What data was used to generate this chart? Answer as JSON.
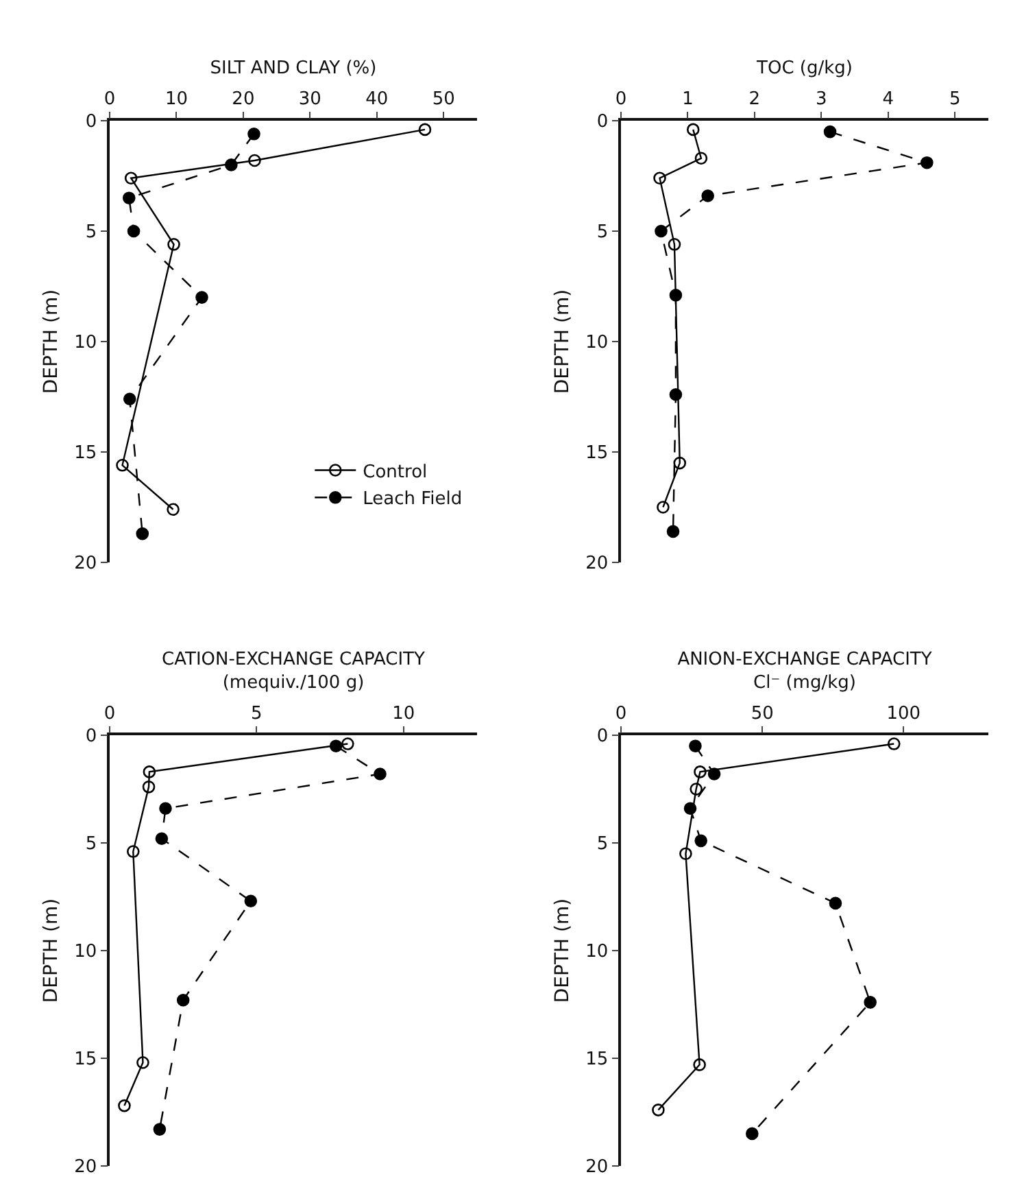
{
  "chart_data": [
    {
      "type": "line",
      "xlabel": "SILT AND CLAY (%)",
      "ylabel": "DEPTH (m)",
      "xlim": [
        0,
        55
      ],
      "xticks": [
        0,
        10,
        20,
        30,
        40,
        50
      ],
      "ylim": [
        20,
        0
      ],
      "yticks": [
        0,
        5,
        10,
        15,
        20
      ],
      "grid": false,
      "legend": "bottom right",
      "series": [
        {
          "name": "Control",
          "color": "#000000",
          "marker": "circle-open",
          "line_style": "solid",
          "x": [
            47.2,
            21.7,
            3.2,
            9.6,
            1.9,
            9.5
          ],
          "values": [
            0.4,
            1.8,
            2.6,
            5.6,
            15.6,
            17.6
          ]
        },
        {
          "name": "Leach Field",
          "color": "#000000",
          "marker": "circle",
          "line_style": "dashed",
          "x": [
            21.6,
            18.2,
            2.9,
            3.6,
            13.8,
            3.0,
            4.9
          ],
          "values": [
            0.6,
            2.0,
            3.5,
            5.0,
            8.0,
            12.6,
            18.7
          ]
        }
      ]
    },
    {
      "type": "line",
      "xlabel": "TOC (g/kg)",
      "ylabel": "DEPTH (m)",
      "xlim": [
        0,
        5.5
      ],
      "xticks": [
        0,
        1,
        2,
        3,
        4,
        5
      ],
      "ylim": [
        20,
        0
      ],
      "yticks": [
        0,
        5,
        10,
        15,
        20
      ],
      "grid": false,
      "series": [
        {
          "color": "#000000",
          "marker": "circle-open",
          "line_style": "solid",
          "x": [
            1.08,
            1.2,
            0.58,
            0.8,
            0.88,
            0.63
          ],
          "values": [
            0.4,
            1.7,
            2.6,
            5.6,
            15.5,
            17.5
          ]
        },
        {
          "color": "#000000",
          "marker": "circle",
          "line_style": "dashed",
          "x": [
            3.13,
            4.58,
            1.3,
            0.6,
            0.82,
            0.82,
            0.78
          ],
          "values": [
            0.5,
            1.9,
            3.4,
            5.0,
            7.9,
            12.4,
            18.6
          ]
        }
      ]
    },
    {
      "type": "line",
      "xlabel": "CATION-EXCHANGE CAPACITY\n(mequiv./100 g)",
      "ylabel": "DEPTH (m)",
      "xlim": [
        0,
        12.5
      ],
      "xticks": [
        0,
        5,
        10
      ],
      "ylim": [
        20,
        0
      ],
      "yticks": [
        0,
        5,
        10,
        15,
        20
      ],
      "grid": false,
      "series": [
        {
          "color": "#000000",
          "marker": "circle-open",
          "line_style": "solid",
          "x": [
            8.1,
            1.35,
            1.33,
            0.8,
            1.13,
            0.5
          ],
          "values": [
            0.4,
            1.7,
            2.4,
            5.4,
            15.2,
            17.2
          ]
        },
        {
          "color": "#000000",
          "marker": "circle",
          "line_style": "dashed",
          "x": [
            7.7,
            9.2,
            1.9,
            1.77,
            4.8,
            2.5,
            1.7
          ],
          "values": [
            0.5,
            1.8,
            3.4,
            4.8,
            7.7,
            12.3,
            18.3
          ]
        }
      ]
    },
    {
      "type": "line",
      "xlabel": "ANION-EXCHANGE CAPACITY\nCl⁻ (mg/kg)",
      "ylabel": "DEPTH (m)",
      "xlim": [
        0,
        130
      ],
      "xticks": [
        0,
        50,
        100
      ],
      "ylim": [
        20,
        0
      ],
      "yticks": [
        0,
        5,
        10,
        15,
        20
      ],
      "grid": false,
      "series": [
        {
          "color": "#000000",
          "marker": "circle-open",
          "line_style": "solid",
          "x": [
            96.6,
            28.0,
            26.6,
            22.9,
            27.8,
            13.2
          ],
          "values": [
            0.4,
            1.7,
            2.5,
            5.5,
            15.3,
            17.4
          ]
        },
        {
          "color": "#000000",
          "marker": "circle",
          "line_style": "dashed",
          "x": [
            26.3,
            33.0,
            24.5,
            28.3,
            75.9,
            88.2,
            46.4
          ],
          "values": [
            0.5,
            1.8,
            3.4,
            4.9,
            7.8,
            12.4,
            18.5
          ]
        }
      ]
    }
  ]
}
